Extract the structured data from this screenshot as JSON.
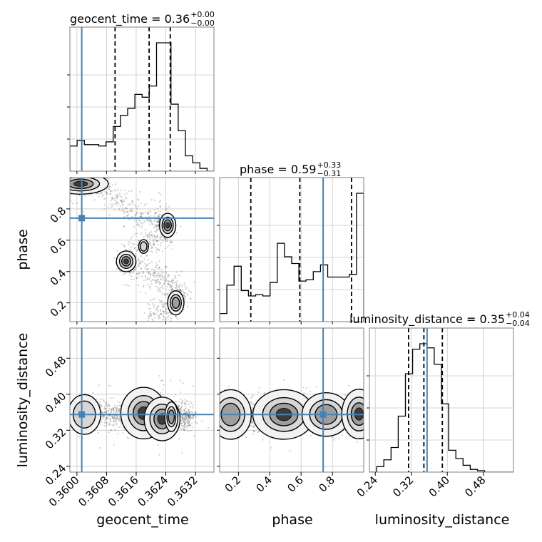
{
  "chart_data": {
    "type": "corner",
    "parameters": [
      "geocent_time",
      "phase",
      "luminosity_distance"
    ],
    "axis_labels": [
      "geocent_time",
      "phase",
      "luminosity_distance"
    ],
    "truths": {
      "geocent_time": 0.36013,
      "phase": 0.741,
      "luminosity_distance": 0.355
    },
    "truth_color": "#4682b4",
    "grid": true,
    "diag_titles": [
      {
        "param": "geocent_time",
        "main": "geocent_time = 0.36",
        "sup": "+0.00",
        "sub": "−0.00"
      },
      {
        "param": "phase",
        "main": "phase = 0.59",
        "sup": "+0.33",
        "sub": "−0.31"
      },
      {
        "param": "luminosity_distance",
        "main": "luminosity_distance = 0.35",
        "sup": "+0.04",
        "sub": "−0.04"
      }
    ],
    "ticks": {
      "geocent_time": {
        "values": [
          0.36,
          0.3608,
          0.3616,
          0.3624,
          0.3632
        ],
        "labels": [
          "0.3600",
          "0.3608",
          "0.3616",
          "0.3624",
          "0.3632"
        ]
      },
      "phase": {
        "values": [
          0.2,
          0.4,
          0.6,
          0.8
        ],
        "labels": [
          "0.2",
          "0.4",
          "0.6",
          "0.8"
        ]
      },
      "luminosity_distance": {
        "values": [
          0.24,
          0.32,
          0.4,
          0.48
        ],
        "labels": [
          "0.24",
          "0.32",
          "0.40",
          "0.48"
        ]
      }
    },
    "ranges": {
      "geocent_time": [
        0.35981,
        0.3637
      ],
      "phase": [
        0.08,
        1.0
      ],
      "luminosity_distance": [
        0.227,
        0.547
      ]
    },
    "histograms": {
      "geocent_time": {
        "edges": [
          0.35981,
          0.360005,
          0.3602,
          0.360395,
          0.36059,
          0.360785,
          0.36098,
          0.361175,
          0.36137,
          0.361565,
          0.36176,
          0.361955,
          0.36215,
          0.362345,
          0.36254,
          0.362735,
          0.36293,
          0.363125,
          0.36332,
          0.363515,
          0.36371
        ],
        "counts": [
          0.18,
          0.22,
          0.19,
          0.19,
          0.18,
          0.21,
          0.32,
          0.4,
          0.45,
          0.55,
          0.53,
          0.61,
          0.92,
          0.92,
          0.48,
          0.29,
          0.11,
          0.06,
          0.02,
          0.0
        ],
        "quantiles": [
          0.36103,
          0.36195,
          0.36252
        ]
      },
      "phase": {
        "edges": [
          0.08,
          0.126,
          0.172,
          0.218,
          0.264,
          0.31,
          0.356,
          0.402,
          0.448,
          0.494,
          0.54,
          0.586,
          0.632,
          0.678,
          0.724,
          0.77,
          0.816,
          0.862,
          0.908,
          0.954,
          1.0
        ],
        "counts": [
          0.06,
          0.27,
          0.41,
          0.23,
          0.19,
          0.2,
          0.19,
          0.29,
          0.58,
          0.48,
          0.43,
          0.3,
          0.31,
          0.37,
          0.42,
          0.33,
          0.33,
          0.33,
          0.35,
          0.95
        ],
        "quantiles": [
          0.279,
          0.592,
          0.922
        ]
      },
      "luminosity_distance": {
        "edges": [
          0.227,
          0.243,
          0.259,
          0.275,
          0.291,
          0.307,
          0.323,
          0.339,
          0.355,
          0.371,
          0.387,
          0.403,
          0.419,
          0.435,
          0.451,
          0.467,
          0.483,
          0.499,
          0.515,
          0.531,
          0.547
        ],
        "counts": [
          0.0,
          0.04,
          0.09,
          0.18,
          0.41,
          0.72,
          0.9,
          0.94,
          0.91,
          0.79,
          0.5,
          0.16,
          0.1,
          0.05,
          0.02,
          0.01,
          0.0,
          0.0,
          0.0,
          0.0
        ],
        "quantiles": [
          0.314,
          0.348,
          0.389
        ]
      }
    },
    "pairs": [
      {
        "x": "geocent_time",
        "y": "phase",
        "ridge": [
          [
            0.35985,
            0.97
          ],
          [
            0.3602,
            0.96
          ],
          [
            0.3606,
            0.95
          ],
          [
            0.361,
            0.88
          ],
          [
            0.3614,
            0.78
          ],
          [
            0.3618,
            0.75
          ],
          [
            0.3621,
            0.74
          ],
          [
            0.3623,
            0.72
          ],
          [
            0.36245,
            0.7
          ],
          [
            0.3625,
            0.66
          ],
          [
            0.3622,
            0.62
          ],
          [
            0.3618,
            0.57
          ],
          [
            0.3614,
            0.5
          ],
          [
            0.36125,
            0.46
          ],
          [
            0.3614,
            0.43
          ],
          [
            0.3618,
            0.4
          ],
          [
            0.3622,
            0.36
          ],
          [
            0.3625,
            0.31
          ],
          [
            0.3627,
            0.27
          ],
          [
            0.3628,
            0.23
          ],
          [
            0.3627,
            0.19
          ],
          [
            0.3624,
            0.15
          ],
          [
            0.3619,
            0.12
          ]
        ],
        "blobs": [
          [
            0.3601,
            0.96,
            0.00034,
            0.03,
            3
          ],
          [
            0.36245,
            0.695,
            0.0001,
            0.035,
            3
          ],
          [
            0.36133,
            0.465,
            0.00012,
            0.03,
            3
          ],
          [
            0.36267,
            0.2,
            0.0001,
            0.035,
            2
          ],
          [
            0.3618,
            0.56,
            6e-05,
            0.02,
            1
          ]
        ]
      },
      {
        "x": "geocent_time",
        "y": "luminosity_distance",
        "ridge": [
          [
            0.35995,
            0.355
          ],
          [
            0.3604,
            0.355
          ],
          [
            0.361,
            0.355
          ],
          [
            0.3616,
            0.352
          ],
          [
            0.3621,
            0.352
          ],
          [
            0.3624,
            0.356
          ],
          [
            0.3628,
            0.352
          ],
          [
            0.3631,
            0.35
          ]
        ],
        "blobs": [
          [
            0.3618,
            0.358,
            0.00028,
            0.026,
            3
          ],
          [
            0.3623,
            0.345,
            0.00022,
            0.022,
            3
          ],
          [
            0.3602,
            0.355,
            0.0002,
            0.02,
            1
          ],
          [
            0.36255,
            0.35,
            8e-05,
            0.015,
            2
          ]
        ]
      },
      {
        "x": "phase",
        "y": "luminosity_distance",
        "ridge": [
          [
            0.1,
            0.355
          ],
          [
            0.2,
            0.355
          ],
          [
            0.3,
            0.352
          ],
          [
            0.4,
            0.356
          ],
          [
            0.5,
            0.354
          ],
          [
            0.6,
            0.352
          ],
          [
            0.7,
            0.356
          ],
          [
            0.8,
            0.354
          ],
          [
            0.9,
            0.356
          ],
          [
            0.98,
            0.352
          ]
        ],
        "blobs": [
          [
            0.15,
            0.355,
            0.06,
            0.025,
            2
          ],
          [
            0.49,
            0.355,
            0.09,
            0.025,
            3
          ],
          [
            0.76,
            0.355,
            0.07,
            0.022,
            2
          ],
          [
            0.97,
            0.356,
            0.05,
            0.025,
            3
          ]
        ]
      }
    ]
  }
}
